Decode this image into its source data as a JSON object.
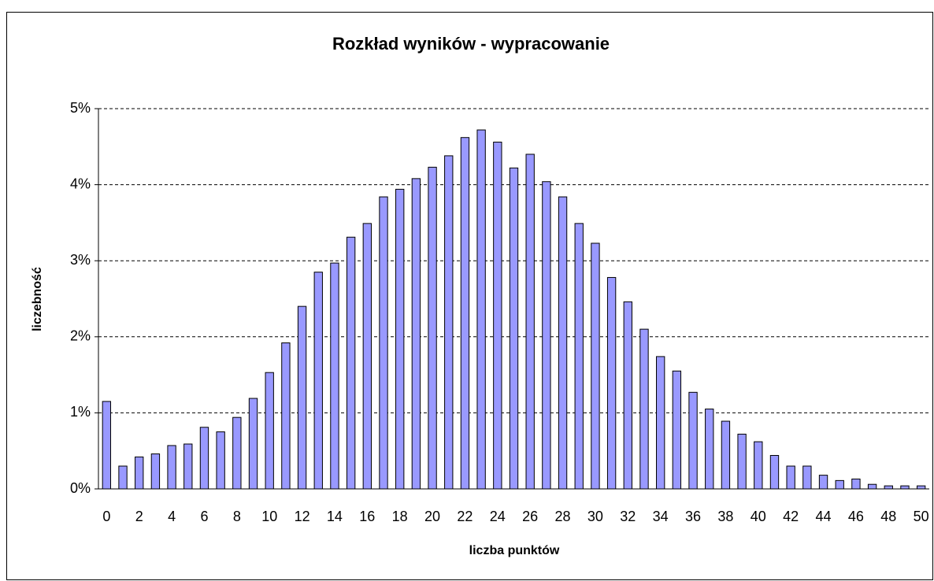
{
  "chart_data": {
    "type": "bar",
    "title": "Rozkład wyników - wypracowanie",
    "x_label": "liczba punktów",
    "y_label": "liczebność",
    "categories": [
      0,
      null,
      2,
      null,
      4,
      null,
      6,
      null,
      8,
      null,
      10,
      null,
      12,
      null,
      14,
      null,
      16,
      null,
      18,
      null,
      20,
      null,
      22,
      null,
      24,
      null,
      26,
      null,
      28,
      null,
      30,
      null,
      32,
      null,
      34,
      null,
      36,
      null,
      38,
      null,
      40,
      null,
      42,
      null,
      44,
      null,
      46,
      null,
      48,
      null,
      50
    ],
    "values": [
      1.15,
      0.3,
      0.42,
      0.46,
      0.57,
      0.59,
      0.81,
      0.75,
      0.94,
      1.19,
      1.53,
      1.92,
      2.4,
      2.85,
      2.97,
      3.31,
      3.49,
      3.84,
      3.94,
      4.08,
      4.23,
      4.38,
      4.62,
      4.72,
      4.56,
      4.22,
      4.4,
      4.04,
      3.84,
      3.49,
      3.23,
      2.78,
      2.46,
      2.1,
      1.74,
      1.55,
      1.27,
      1.05,
      0.89,
      0.72,
      0.62,
      0.44,
      0.3,
      0.3,
      0.18,
      0.11,
      0.13,
      0.06,
      0.04,
      0.04,
      0.04
    ],
    "color": "#9999ff",
    "ylim": [
      0,
      5
    ],
    "yticks": [
      {
        "value": 0,
        "label": "0%"
      },
      {
        "value": 1,
        "label": "1%"
      },
      {
        "value": 2,
        "label": "2%"
      },
      {
        "value": 3,
        "label": "3%"
      },
      {
        "value": 4,
        "label": "4%"
      },
      {
        "value": 5,
        "label": "5%"
      }
    ],
    "grid": true
  }
}
